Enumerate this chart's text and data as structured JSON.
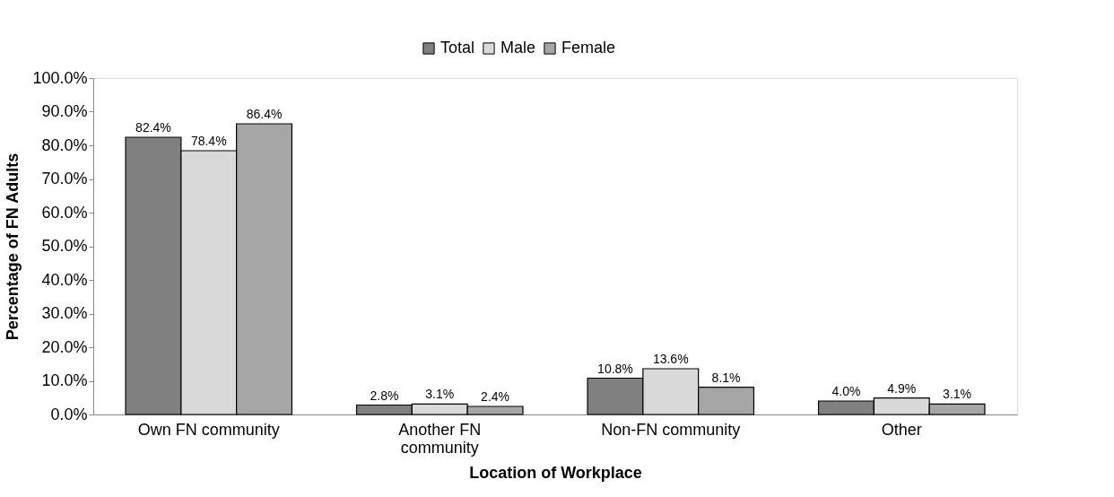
{
  "chart_data": {
    "type": "bar",
    "xlabel": "Location of Workplace",
    "ylabel": "Percentage of FN Adults",
    "categories": [
      "Own FN community",
      "Another FN community",
      "Non-FN community",
      "Other"
    ],
    "series": [
      {
        "name": "Total",
        "color": "#808080",
        "values": [
          82.4,
          2.8,
          10.8,
          4.0
        ],
        "value_labels": [
          "82.4%",
          "2.8%",
          "10.8%",
          "4.0%"
        ]
      },
      {
        "name": "Male",
        "color": "#d9d9d9",
        "values": [
          78.4,
          3.1,
          13.6,
          4.9
        ],
        "value_labels": [
          "78.4%",
          "3.1%",
          "13.6%",
          "4.9%"
        ]
      },
      {
        "name": "Female",
        "color": "#a6a6a6",
        "values": [
          86.4,
          2.4,
          8.1,
          3.1
        ],
        "value_labels": [
          "86.4%",
          "2.4%",
          "8.1%",
          "3.1%"
        ]
      }
    ],
    "ylim": [
      0,
      100
    ],
    "yticks": [
      {
        "value": 0,
        "label": "0.0%"
      },
      {
        "value": 10,
        "label": "10.0%"
      },
      {
        "value": 20,
        "label": "20.0%"
      },
      {
        "value": 30,
        "label": "30.0%"
      },
      {
        "value": 40,
        "label": "40.0%"
      },
      {
        "value": 50,
        "label": "50.0%"
      },
      {
        "value": 60,
        "label": "60.0%"
      },
      {
        "value": 70,
        "label": "70.0%"
      },
      {
        "value": 80,
        "label": "80.0%"
      },
      {
        "value": 90,
        "label": "90.0%"
      },
      {
        "value": 100,
        "label": "100.0%"
      }
    ],
    "grid": false,
    "legend": "top"
  }
}
